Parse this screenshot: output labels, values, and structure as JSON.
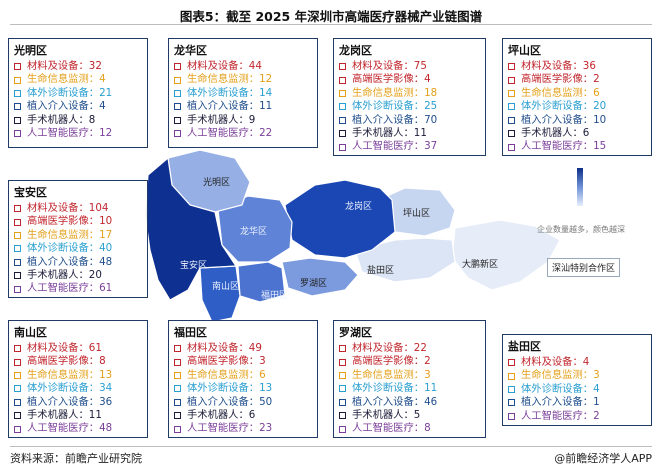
{
  "title": "图表5：截至 2025 年深圳市高端医疗器械产业链图谱",
  "source": "资料来源：前瞻产业研究院",
  "brand": "@前瞻经济学人APP",
  "legend_note": "企业数量越多，颜色越深",
  "colors": {
    "materials": "#c0262d",
    "imaging": "#c0262d",
    "vital_signs": "#e3a01b",
    "ivd": "#2a9fd0",
    "implant": "#1f4e8c",
    "robot": "#1c1c3a",
    "ai": "#7b3f9a",
    "box_border": "#1f3b66"
  },
  "districts": {
    "guangming": {
      "name": "光明区",
      "items": [
        "材料及设备：32",
        "生命信息监测：4",
        "体外诊断设备：21",
        "植入介入设备：4",
        "手术机器人：8",
        "人工智能医疗：12"
      ]
    },
    "longhua": {
      "name": "龙华区",
      "items": [
        "材料及设备：44",
        "生命信息监测：12",
        "体外诊断设备：14",
        "植入介入设备：11",
        "手术机器人：9",
        "人工智能医疗：22"
      ]
    },
    "longgang": {
      "name": "龙岗区",
      "items": [
        "材料及设备：75",
        "高端医学影像：4",
        "生命信息监测：18",
        "体外诊断设备：25",
        "植入介入设备：70",
        "手术机器人：11",
        "人工智能医疗：37"
      ]
    },
    "pingshan": {
      "name": "坪山区",
      "items": [
        "材料及设备：36",
        "高端医学影像：2",
        "生命信息监测：6",
        "体外诊断设备：20",
        "植入介入设备：10",
        "手术机器人：6",
        "人工智能医疗：15"
      ]
    },
    "baoan": {
      "name": "宝安区",
      "items": [
        "材料及设备：104",
        "高端医学影像：10",
        "生命信息监测：17",
        "体外诊断设备：40",
        "植入介入设备：48",
        "手术机器人：20",
        "人工智能医疗：61"
      ]
    },
    "nanshan": {
      "name": "南山区",
      "items": [
        "材料及设备：61",
        "高端医学影像：8",
        "生命信息监测：13",
        "体外诊断设备：34",
        "植入介入设备：36",
        "手术机器人：11",
        "人工智能医疗：48"
      ]
    },
    "futian": {
      "name": "福田区",
      "items": [
        "材料及设备：49",
        "高端医学影像：3",
        "生命信息监测：6",
        "体外诊断设备：13",
        "植入介入设备：50",
        "手术机器人：6",
        "人工智能医疗：23"
      ]
    },
    "luohu": {
      "name": "罗湖区",
      "items": [
        "材料及设备：22",
        "高端医学影像：2",
        "生命信息监测：3",
        "体外诊断设备：11",
        "植入介入设备：46",
        "手术机器人：5",
        "人工智能医疗：8"
      ]
    },
    "yantian": {
      "name": "盐田区",
      "items": [
        "材料及设备：4",
        "生命信息监测：3",
        "体外诊断设备：4",
        "植入介入设备：1",
        "人工智能医疗：2"
      ]
    }
  },
  "map_labels": {
    "guangming": "光明区",
    "longhua": "龙华区",
    "longgang": "龙岗区",
    "pingshan": "坪山区",
    "baoan": "宝安区",
    "nanshan": "南山区",
    "futian": "福田区",
    "luohu": "罗湖区",
    "yantian": "盐田区",
    "dapeng": "大鹏新区",
    "shenshan": "深汕特别合作区"
  }
}
